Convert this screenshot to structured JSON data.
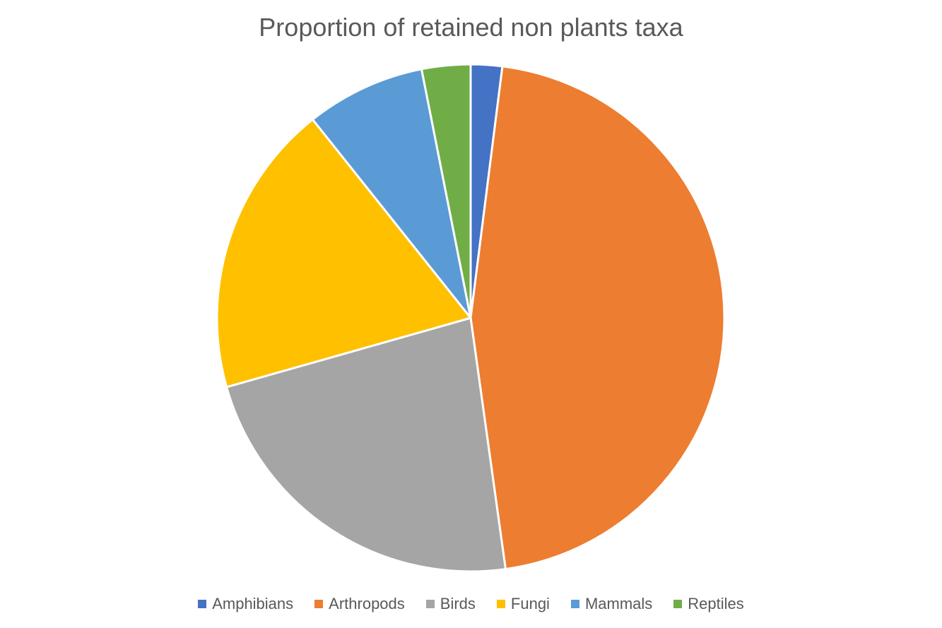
{
  "chart_data": {
    "type": "pie",
    "title": "Proportion of retained non plants taxa",
    "categories": [
      "Amphibians",
      "Arthropods",
      "Birds",
      "Fungi",
      "Mammals",
      "Reptiles"
    ],
    "values": [
      2.0,
      45.8,
      22.8,
      18.7,
      7.6,
      3.1
    ],
    "colors": [
      "#4472C4",
      "#ED7D31",
      "#A5A5A5",
      "#FFC000",
      "#5B9BD5",
      "#70AD47"
    ],
    "start_angle_deg": 0,
    "direction": "clockwise",
    "legend_position": "bottom"
  }
}
